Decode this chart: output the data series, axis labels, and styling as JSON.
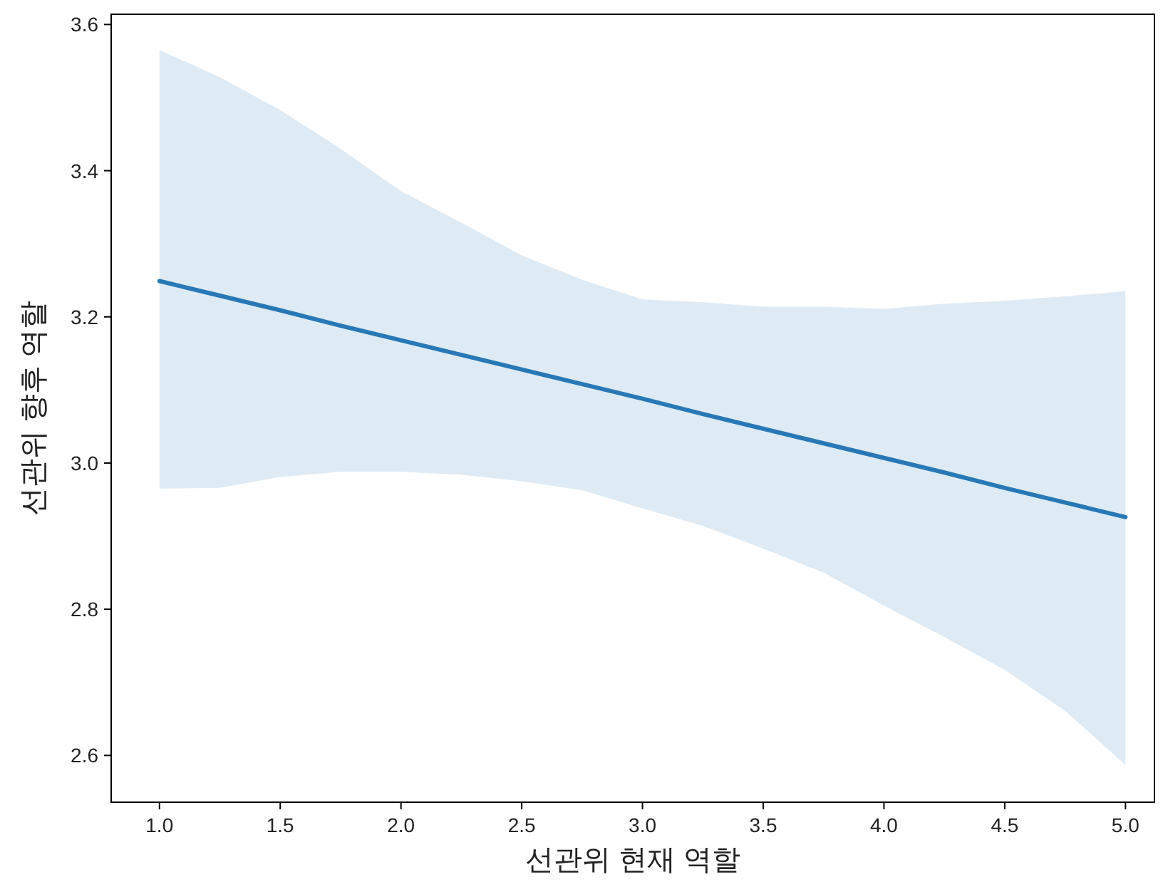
{
  "chart_data": {
    "type": "line",
    "xlabel": "선관위 현재 역할",
    "ylabel": "선관위 향후 역할",
    "xlim": [
      0.8,
      5.12
    ],
    "ylim": [
      2.536,
      3.614
    ],
    "xticks": [
      {
        "value": 1,
        "label": "1.0"
      },
      {
        "value": 1.5,
        "label": "1.5"
      },
      {
        "value": 2,
        "label": "2.0"
      },
      {
        "value": 2.5,
        "label": "2.5"
      },
      {
        "value": 3,
        "label": "3.0"
      },
      {
        "value": 3.5,
        "label": "3.5"
      },
      {
        "value": 4,
        "label": "4.0"
      },
      {
        "value": 4.5,
        "label": "4.5"
      },
      {
        "value": 5,
        "label": "5.0"
      }
    ],
    "yticks": [
      2.6,
      2.8,
      {
        "value": 3,
        "label": "3.0"
      },
      3.2,
      3.4,
      3.6
    ],
    "grid": false,
    "marker": "none",
    "line_style": "solid",
    "series": [
      {
        "color": "#2878b5",
        "x": [
          1,
          1.25,
          1.5,
          1.75,
          2,
          2.25,
          2.5,
          2.75,
          3,
          3.25,
          3.5,
          3.75,
          4,
          4.25,
          4.5,
          4.75,
          5
        ],
        "values": [
          3.249,
          3.229,
          3.209,
          3.188,
          3.168,
          3.148,
          3.128,
          3.108,
          3.088,
          3.067,
          3.047,
          3.027,
          3.007,
          2.987,
          2.966,
          2.946,
          2.926
        ],
        "lower": [
          2.965,
          2.966,
          2.981,
          2.988,
          2.988,
          2.984,
          2.975,
          2.963,
          2.938,
          2.914,
          2.883,
          2.85,
          2.805,
          2.762,
          2.717,
          2.661,
          2.587
        ],
        "upper": [
          3.565,
          3.528,
          3.483,
          3.43,
          3.372,
          3.329,
          3.284,
          3.251,
          3.224,
          3.22,
          3.214,
          3.214,
          3.211,
          3.218,
          3.222,
          3.228,
          3.235
        ]
      }
    ]
  }
}
